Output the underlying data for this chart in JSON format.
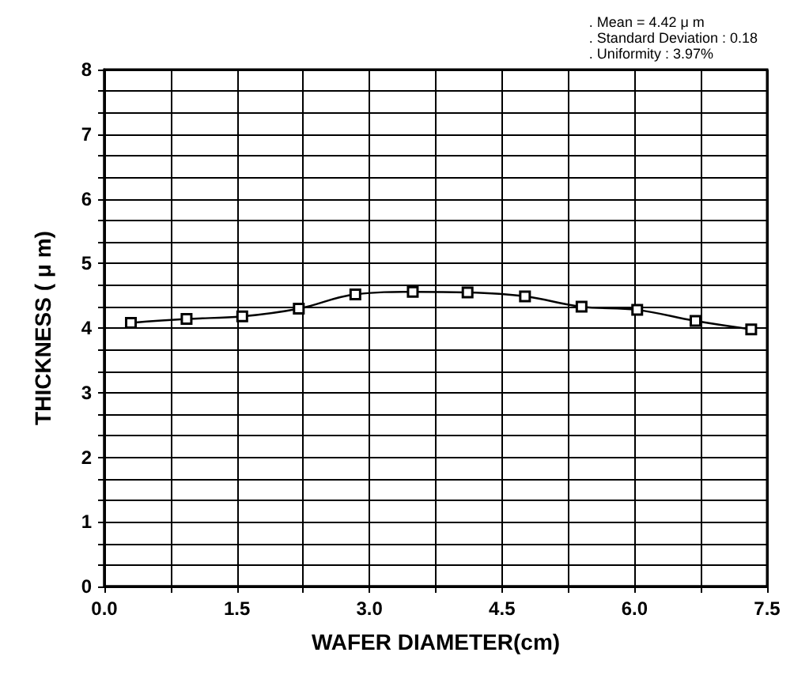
{
  "chart_data": {
    "type": "line",
    "xlabel": "WAFER DIAMETER(cm)",
    "ylabel": "THICKNESS ( μ m)",
    "annotations": [
      ". Mean = 4.42 μ m",
      ". Standard Deviation : 0.18",
      ". Uniformity : 3.97%"
    ],
    "x": [
      0.3,
      0.93,
      1.56,
      2.2,
      2.84,
      3.49,
      4.11,
      4.76,
      5.4,
      6.03,
      6.69,
      7.32
    ],
    "series": [
      {
        "color": "#000000",
        "values": [
          4.08,
          4.14,
          4.18,
          4.3,
          4.52,
          4.56,
          4.55,
          4.49,
          4.33,
          4.28,
          4.11,
          3.98
        ]
      }
    ],
    "xlim": [
      0,
      7.5
    ],
    "xticks": [
      {
        "value": 0,
        "label": "0.0"
      },
      {
        "value": 1.5,
        "label": "1.5"
      },
      {
        "value": 3,
        "label": "3.0"
      },
      {
        "value": 4.5,
        "label": "4.5"
      },
      {
        "value": 6,
        "label": "6.0"
      },
      {
        "value": 7.5,
        "label": "7.5"
      }
    ],
    "ylim": [
      0,
      8
    ],
    "yticks": [
      0,
      1,
      2,
      3,
      4,
      5,
      6,
      7,
      8
    ],
    "grid": true,
    "marker": "square",
    "line_style": "solid"
  }
}
